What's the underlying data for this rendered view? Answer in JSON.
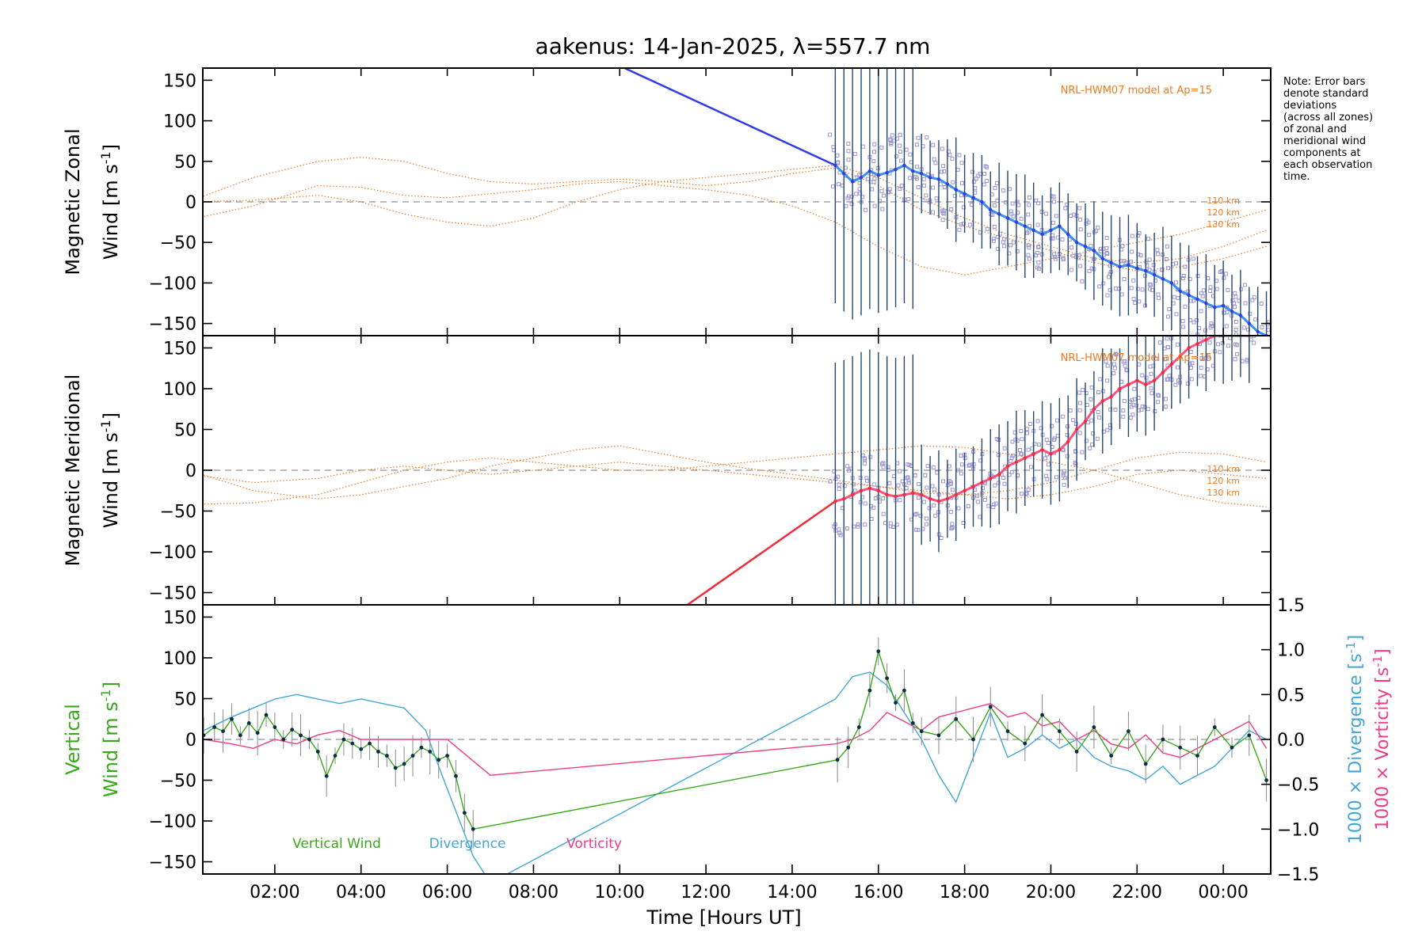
{
  "title": "aakenus: 14-Jan-2025, λ=557.7 nm",
  "note_lines": [
    "Note: Error bars",
    "denote standard",
    "deviations",
    "(across all zones)",
    "of zonal and",
    "meridional wind",
    "components at",
    "each observation",
    "time."
  ],
  "colors": {
    "zonal": "#2f3de6",
    "zonal_light": "#3a8ef0",
    "meridional": "#ee2c3a",
    "meridional_light": "#ff4f7e",
    "model": "#f07a1e",
    "vertical": "#3aa81c",
    "divergence": "#44a6d8",
    "vorticity": "#ee3c86",
    "zone_scatter": "#9a96d6",
    "errorbar": "#23476e"
  },
  "chart_data": [
    {
      "type": "line",
      "id": "zonal",
      "ylabel_line1": "Magnetic Zonal",
      "ylabel_line2_prefix": "Wind [m s",
      "ylabel_exp": "-1",
      "ylabel_suffix": "]",
      "ylim": [
        -165,
        165
      ],
      "yticks": [
        -150,
        -100,
        -50,
        0,
        50,
        100,
        150
      ],
      "ytick_labels": [
        "−150",
        "−100",
        "−50",
        "0",
        "50",
        "100",
        "150"
      ],
      "model_label": "NRL-HWM07 model at Ap=15",
      "model_heights": [
        "110 km",
        "120 km",
        "130 km"
      ],
      "model_curves": [
        {
          "x": [
            0,
            1.5,
            3,
            4,
            5,
            6,
            7,
            8,
            9,
            10,
            11,
            12,
            13,
            14,
            15,
            16,
            17,
            18,
            19,
            20,
            21,
            22,
            23,
            24,
            25
          ],
          "y": [
            -22,
            -5,
            20,
            18,
            8,
            5,
            10,
            15,
            22,
            25,
            20,
            15,
            8,
            -5,
            -25,
            -55,
            -80,
            -90,
            -80,
            -70,
            -60,
            -50,
            -40,
            -25,
            -10
          ]
        },
        {
          "x": [
            0,
            1.5,
            3,
            4,
            5,
            6,
            7,
            8,
            9,
            10,
            11,
            12,
            13,
            14,
            15,
            16,
            17,
            18,
            19,
            20,
            21,
            22,
            23,
            24,
            25
          ],
          "y": [
            0,
            30,
            50,
            55,
            50,
            35,
            25,
            22,
            25,
            28,
            25,
            20,
            25,
            35,
            42,
            20,
            -10,
            -30,
            -45,
            -60,
            -75,
            -85,
            -80,
            -70,
            -55
          ]
        },
        {
          "x": [
            0,
            1.5,
            3,
            4,
            5,
            6,
            7,
            8,
            9,
            10,
            11,
            12,
            13,
            14,
            15,
            16,
            17,
            18,
            19,
            20,
            21,
            22,
            23,
            24,
            25
          ],
          "y": [
            0,
            2,
            8,
            0,
            -15,
            -25,
            -30,
            -20,
            0,
            15,
            25,
            30,
            35,
            40,
            45,
            30,
            5,
            -20,
            -40,
            -55,
            -70,
            -75,
            -70,
            -55,
            -35
          ]
        }
      ]
    },
    {
      "type": "line",
      "id": "meridional",
      "ylabel_line1": "Magnetic Meridional",
      "ylabel_line2_prefix": "Wind [m s",
      "ylabel_exp": "-1",
      "ylabel_suffix": "]",
      "ylim": [
        -165,
        165
      ],
      "yticks": [
        -150,
        -100,
        -50,
        0,
        50,
        100,
        150
      ],
      "ytick_labels": [
        "−150",
        "−100",
        "−50",
        "0",
        "50",
        "100",
        "150"
      ],
      "model_label": "NRL-HWM07 model at Ap=15",
      "model_heights": [
        "110 km",
        "120 km",
        "130 km"
      ],
      "model_curves": [
        {
          "x": [
            0,
            1.5,
            3,
            4,
            5,
            6,
            7,
            8,
            9,
            10,
            11,
            12,
            13,
            14,
            15,
            16,
            17,
            18,
            19,
            20,
            21,
            22,
            23,
            24,
            25
          ],
          "y": [
            0,
            -25,
            -35,
            -30,
            -20,
            -10,
            5,
            15,
            25,
            30,
            20,
            10,
            2,
            -5,
            -12,
            -20,
            -28,
            -30,
            -25,
            -15,
            0,
            15,
            22,
            20,
            10
          ]
        },
        {
          "x": [
            0,
            1.5,
            3,
            4,
            5,
            6,
            7,
            8,
            9,
            10,
            11,
            12,
            13,
            14,
            15,
            16,
            17,
            18,
            19,
            20,
            21,
            22,
            23,
            24,
            25
          ],
          "y": [
            -42,
            -40,
            -30,
            -15,
            0,
            10,
            15,
            10,
            5,
            0,
            0,
            5,
            10,
            15,
            20,
            25,
            30,
            28,
            20,
            10,
            0,
            -15,
            -30,
            -40,
            -45
          ]
        },
        {
          "x": [
            0,
            1.5,
            3,
            4,
            5,
            6,
            7,
            8,
            9,
            10,
            11,
            12,
            13,
            14,
            15,
            16,
            17,
            18,
            19,
            20,
            21,
            22,
            23,
            24,
            25
          ],
          "y": [
            -5,
            -15,
            -10,
            0,
            5,
            0,
            -5,
            0,
            5,
            10,
            5,
            0,
            -5,
            -10,
            -15,
            -20,
            -25,
            -30,
            -35,
            -30,
            -20,
            -5,
            0,
            -5,
            -10
          ]
        }
      ]
    },
    {
      "type": "line",
      "id": "vertical",
      "ylabel_left_line1": "Vertical",
      "ylabel_left_line2_prefix": "Wind [m s",
      "ylabel_exp": "-1",
      "ylabel_suffix": "]",
      "xlabel": "Time [Hours UT]",
      "xlim": [
        0.33,
        25.1
      ],
      "xticks": [
        2,
        4,
        6,
        8,
        10,
        12,
        14,
        16,
        18,
        20,
        22,
        24
      ],
      "xtick_labels": [
        "02:00",
        "04:00",
        "06:00",
        "08:00",
        "10:00",
        "12:00",
        "14:00",
        "16:00",
        "18:00",
        "20:00",
        "22:00",
        "00:00"
      ],
      "ylim": [
        -165,
        165
      ],
      "yticks": [
        -150,
        -100,
        -50,
        0,
        50,
        100,
        150
      ],
      "ytick_labels": [
        "−150",
        "−100",
        "−50",
        "0",
        "50",
        "100",
        "150"
      ],
      "right_ylim": [
        -1.5,
        1.5
      ],
      "right_yticks": [
        -1.5,
        -1.0,
        -0.5,
        0.0,
        0.5,
        1.0,
        1.5
      ],
      "right_ytick_labels": [
        "−1.5",
        "−1.0",
        "−0.5",
        "0.0",
        "0.5",
        "1.0",
        "1.5"
      ],
      "right_label_divergence_prefix": "1000 × Divergence [s",
      "right_label_vorticity_prefix": "1000 × Vorticity [s",
      "right_label_exp": "-1",
      "right_label_suffix": "]",
      "legend": [
        "Vertical Wind",
        "Divergence",
        "Vorticity"
      ],
      "series": [
        {
          "name": "Vertical Wind",
          "x": [
            0.35,
            0.6,
            0.8,
            1.0,
            1.2,
            1.4,
            1.6,
            1.8,
            2.0,
            2.2,
            2.4,
            2.6,
            2.8,
            3.0,
            3.2,
            3.4,
            3.6,
            3.8,
            4.0,
            4.2,
            4.4,
            4.6,
            4.8,
            5.0,
            5.2,
            5.4,
            5.6,
            5.8,
            6.0,
            6.2,
            6.4,
            6.6,
            15.05,
            15.3,
            15.55,
            15.8,
            16.0,
            16.2,
            16.4,
            16.6,
            16.8,
            17.0,
            17.4,
            17.8,
            18.2,
            18.6,
            19.0,
            19.4,
            19.8,
            20.2,
            20.6,
            21.0,
            21.4,
            21.8,
            22.2,
            22.6,
            23.0,
            23.4,
            23.8,
            24.2,
            24.6,
            25.0
          ],
          "y": [
            5,
            15,
            10,
            25,
            5,
            20,
            8,
            30,
            15,
            0,
            12,
            5,
            0,
            -15,
            -45,
            -20,
            0,
            -5,
            -12,
            -5,
            -15,
            -20,
            -35,
            -30,
            -20,
            -10,
            -15,
            -25,
            -20,
            -45,
            -90,
            -110,
            -25,
            -10,
            15,
            60,
            108,
            75,
            45,
            60,
            20,
            10,
            5,
            25,
            0,
            40,
            10,
            -5,
            30,
            10,
            -15,
            15,
            -20,
            10,
            -30,
            0,
            -10,
            -20,
            15,
            -10,
            5,
            -50
          ]
        },
        {
          "name": "Divergence",
          "x": [
            0.35,
            1.0,
            1.5,
            2.0,
            2.5,
            3.0,
            3.5,
            4.0,
            4.5,
            5.0,
            5.5,
            5.8,
            6.2,
            6.6,
            7.0,
            15.0,
            15.4,
            15.8,
            16.2,
            16.6,
            17.0,
            17.4,
            17.8,
            18.2,
            18.6,
            19.0,
            19.4,
            19.8,
            20.2,
            20.6,
            21.0,
            21.4,
            21.8,
            22.2,
            22.6,
            23.0,
            23.4,
            23.8,
            24.2,
            24.6,
            25.0
          ],
          "y": [
            0.1,
            0.25,
            0.35,
            0.45,
            0.5,
            0.45,
            0.4,
            0.45,
            0.4,
            0.35,
            0.1,
            -0.3,
            -0.8,
            -1.3,
            -1.6,
            0.45,
            0.7,
            0.75,
            0.6,
            0.3,
            0.0,
            -0.4,
            -0.7,
            -0.2,
            0.3,
            -0.2,
            -0.1,
            0.05,
            -0.1,
            0.0,
            -0.2,
            -0.3,
            -0.35,
            -0.45,
            -0.3,
            -0.5,
            -0.4,
            -0.3,
            -0.1,
            0.1,
            0.0
          ]
        },
        {
          "name": "Vorticity",
          "x": [
            0.35,
            1.0,
            1.5,
            2.0,
            2.5,
            3.0,
            3.5,
            4.0,
            4.5,
            5.0,
            5.5,
            6.0,
            6.5,
            7.0,
            15.0,
            15.4,
            15.8,
            16.2,
            16.6,
            17.0,
            17.4,
            17.8,
            18.2,
            18.6,
            19.0,
            19.4,
            19.8,
            20.2,
            20.6,
            21.0,
            21.4,
            21.8,
            22.2,
            22.6,
            23.0,
            23.4,
            23.8,
            24.2,
            24.6,
            25.0
          ],
          "y": [
            0.0,
            -0.05,
            -0.1,
            0.0,
            -0.05,
            0.05,
            0.1,
            0.0,
            0.0,
            0.0,
            0.0,
            0.0,
            -0.2,
            -0.4,
            -0.05,
            0.0,
            0.1,
            0.3,
            0.2,
            0.1,
            0.25,
            0.3,
            0.35,
            0.4,
            0.25,
            0.3,
            0.15,
            0.2,
            0.0,
            0.1,
            -0.05,
            -0.1,
            0.05,
            -0.15,
            -0.2,
            -0.1,
            0.0,
            0.1,
            0.2,
            -0.1
          ]
        }
      ]
    }
  ],
  "zonal_series": {
    "name": "",
    "x": [
      15.0,
      15.2,
      15.4,
      15.6,
      15.8,
      16.0,
      16.2,
      16.4,
      16.6,
      16.8,
      17.0,
      17.2,
      17.4,
      17.6,
      17.8,
      18.0,
      18.2,
      18.4,
      18.6,
      18.8,
      19.0,
      19.2,
      19.4,
      19.6,
      19.8,
      20.0,
      20.2,
      20.4,
      20.6,
      20.8,
      21.0,
      21.2,
      21.4,
      21.6,
      21.8,
      22.0,
      22.2,
      22.4,
      22.6,
      22.8,
      23.0,
      23.2,
      23.4,
      23.6,
      23.8,
      24.0,
      24.2,
      24.4,
      24.6,
      24.8,
      25.0
    ],
    "y": [
      45,
      35,
      25,
      30,
      38,
      33,
      36,
      40,
      45,
      38,
      35,
      30,
      28,
      22,
      15,
      10,
      5,
      0,
      -10,
      -15,
      -20,
      -25,
      -30,
      -35,
      -40,
      -35,
      -30,
      -40,
      -50,
      -55,
      -60,
      -70,
      -75,
      -80,
      -78,
      -82,
      -85,
      -90,
      -95,
      -100,
      -110,
      -115,
      -120,
      -125,
      -130,
      -128,
      -135,
      -140,
      -150,
      -160,
      -165
    ]
  },
  "meridional_series": {
    "name": "",
    "x": [
      15.0,
      15.2,
      15.4,
      15.6,
      15.8,
      16.0,
      16.2,
      16.4,
      16.6,
      16.8,
      17.0,
      17.2,
      17.4,
      17.6,
      17.8,
      18.0,
      18.2,
      18.4,
      18.6,
      18.8,
      19.0,
      19.2,
      19.4,
      19.6,
      19.8,
      20.0,
      20.2,
      20.4,
      20.6,
      20.8,
      21.0,
      21.2,
      21.4,
      21.6,
      21.8,
      22.0,
      22.2,
      22.4,
      22.6,
      22.8,
      23.0,
      23.2,
      23.4,
      23.6,
      23.8,
      24.0,
      24.2,
      24.4,
      24.6
    ],
    "y": [
      -38,
      -35,
      -30,
      -25,
      -22,
      -25,
      -30,
      -32,
      -30,
      -28,
      -30,
      -35,
      -38,
      -35,
      -30,
      -25,
      -20,
      -15,
      -10,
      -5,
      5,
      10,
      15,
      20,
      25,
      20,
      25,
      35,
      50,
      60,
      75,
      85,
      90,
      100,
      105,
      110,
      105,
      110,
      120,
      130,
      140,
      150,
      155,
      160,
      165,
      165,
      165,
      165,
      165
    ]
  }
}
